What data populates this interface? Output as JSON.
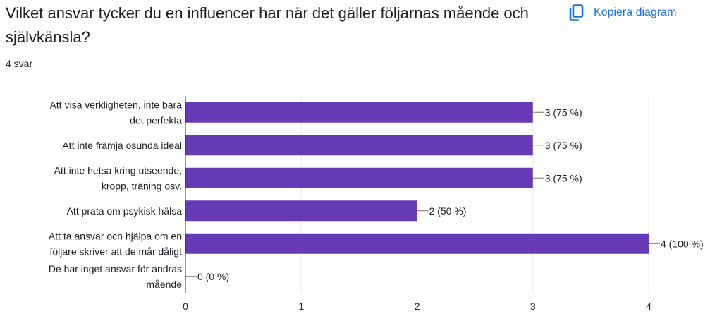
{
  "header": {
    "question": "Vilket ansvar tycker du en influencer har när det gäller följarnas mående och självkänsla?",
    "response_count": "4 svar",
    "copy_label": "Kopiera diagram",
    "copy_icon": "copy-icon"
  },
  "colors": {
    "bar": "#673ab7",
    "accent": "#1a73e8",
    "text": "#202124",
    "grid": "#e8e8e8"
  },
  "chart_data": {
    "type": "bar",
    "orientation": "horizontal",
    "categories": [
      [
        "Att visa verkligheten, inte bara",
        "det perfekta"
      ],
      [
        "Att inte främja osunda ideal"
      ],
      [
        "Att inte hetsa kring utseende,",
        "kropp, träning osv."
      ],
      [
        "Att prata om psykisk hälsa"
      ],
      [
        "Att ta ansvar och hjälpa om en",
        "följare skriver att de mår dåligt"
      ],
      [
        "De har inget ansvar för andras",
        "mående"
      ]
    ],
    "values": [
      3,
      3,
      3,
      2,
      4,
      0
    ],
    "data_labels": [
      "3 (75 %)",
      "3 (75 %)",
      "3 (75 %)",
      "2 (50 %)",
      "4 (100 %)",
      "0 (0 %)"
    ],
    "xlim": [
      0,
      4
    ],
    "x_ticks": [
      "0",
      "1",
      "2",
      "3",
      "4"
    ],
    "grid": true
  }
}
